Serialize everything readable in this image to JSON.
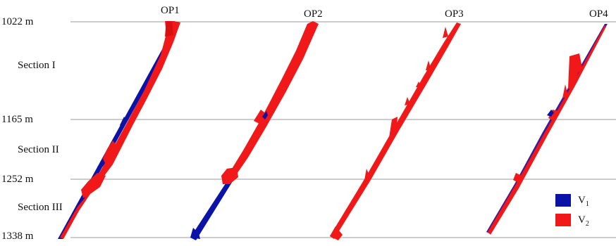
{
  "depth_markers": [
    "1022 m",
    "1165 m",
    "1252 m",
    "1338 m"
  ],
  "sections": [
    "Section I",
    "Section II",
    "Section III"
  ],
  "columns": [
    "OP1",
    "OP2",
    "OP3",
    "OP4"
  ],
  "legend": [
    {
      "base": "V",
      "sub": "1",
      "color": "#0a12a8"
    },
    {
      "base": "V",
      "sub": "2",
      "color": "#f01818"
    }
  ],
  "colors": {
    "v1": "#0a12a8",
    "v2": "#f01818",
    "gridline": "#9a9a9a"
  }
}
